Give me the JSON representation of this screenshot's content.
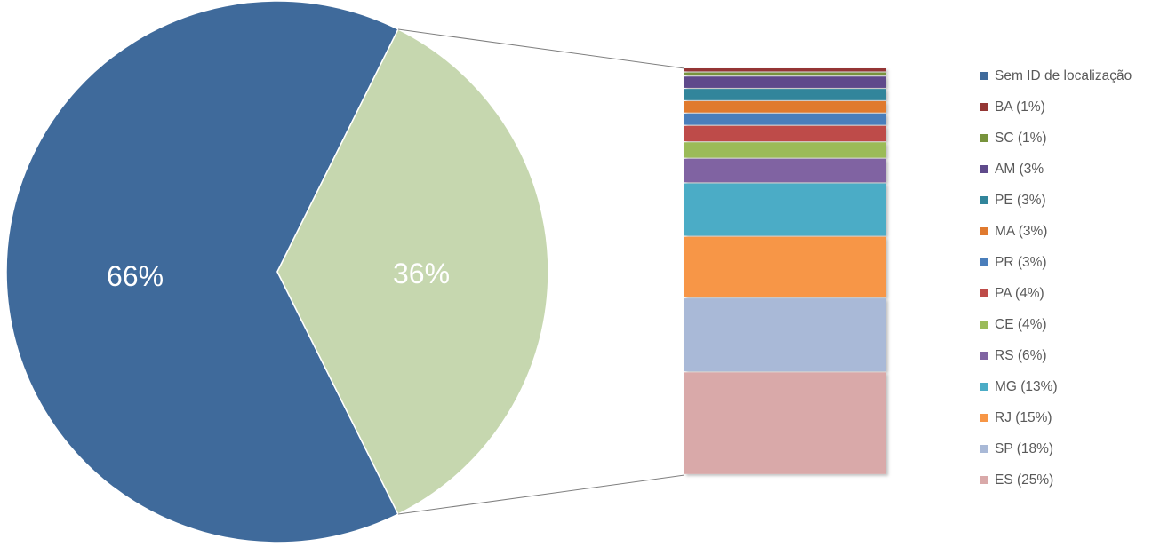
{
  "chart_data": {
    "type": "bar-of-pie",
    "pie": {
      "slices": [
        {
          "label": "66%",
          "value": 66,
          "color": "#3f6a9b"
        },
        {
          "label": "36%",
          "value": 36,
          "color": "#c6d7af"
        }
      ]
    },
    "breakdown": {
      "stacked_order_top_to_bottom": [
        {
          "name": "BA (1%)",
          "value": 1,
          "color": "#943634"
        },
        {
          "name": "SC (1%)",
          "value": 1,
          "color": "#77933c"
        },
        {
          "name": "AM (3%",
          "value": 3,
          "color": "#5f4a8b"
        },
        {
          "name": "PE (3%)",
          "value": 3,
          "color": "#31859b"
        },
        {
          "name": "MA (3%)",
          "value": 3,
          "color": "#e07a2f"
        },
        {
          "name": "PR (3%)",
          "value": 3,
          "color": "#4a7ebb"
        },
        {
          "name": "PA (4%)",
          "value": 4,
          "color": "#be4b48"
        },
        {
          "name": "CE (4%)",
          "value": 4,
          "color": "#9bbb59"
        },
        {
          "name": "RS (6%)",
          "value": 6,
          "color": "#8064a2"
        },
        {
          "name": "MG (13%)",
          "value": 13,
          "color": "#4bacc6"
        },
        {
          "name": "RJ (15%)",
          "value": 15,
          "color": "#f79646"
        },
        {
          "name": "SP (18%)",
          "value": 18,
          "color": "#a9b9d7"
        },
        {
          "name": "ES (25%)",
          "value": 25,
          "color": "#d9a9a9"
        }
      ]
    },
    "legend": [
      {
        "name": "Sem ID de localização",
        "color": "#3f6a9b"
      },
      {
        "name": "BA (1%)",
        "color": "#943634"
      },
      {
        "name": "SC (1%)",
        "color": "#77933c"
      },
      {
        "name": "AM (3%",
        "color": "#5f4a8b"
      },
      {
        "name": "PE (3%)",
        "color": "#31859b"
      },
      {
        "name": "MA (3%)",
        "color": "#e07a2f"
      },
      {
        "name": "PR (3%)",
        "color": "#4a7ebb"
      },
      {
        "name": "PA (4%)",
        "color": "#be4b48"
      },
      {
        "name": "CE (4%)",
        "color": "#9bbb59"
      },
      {
        "name": "RS (6%)",
        "color": "#8064a2"
      },
      {
        "name": "MG (13%)",
        "color": "#4bacc6"
      },
      {
        "name": "RJ (15%)",
        "color": "#f79646"
      },
      {
        "name": "SP (18%)",
        "color": "#a9b9d7"
      },
      {
        "name": "ES (25%)",
        "color": "#d9a9a9"
      }
    ],
    "legend_position": "right"
  }
}
